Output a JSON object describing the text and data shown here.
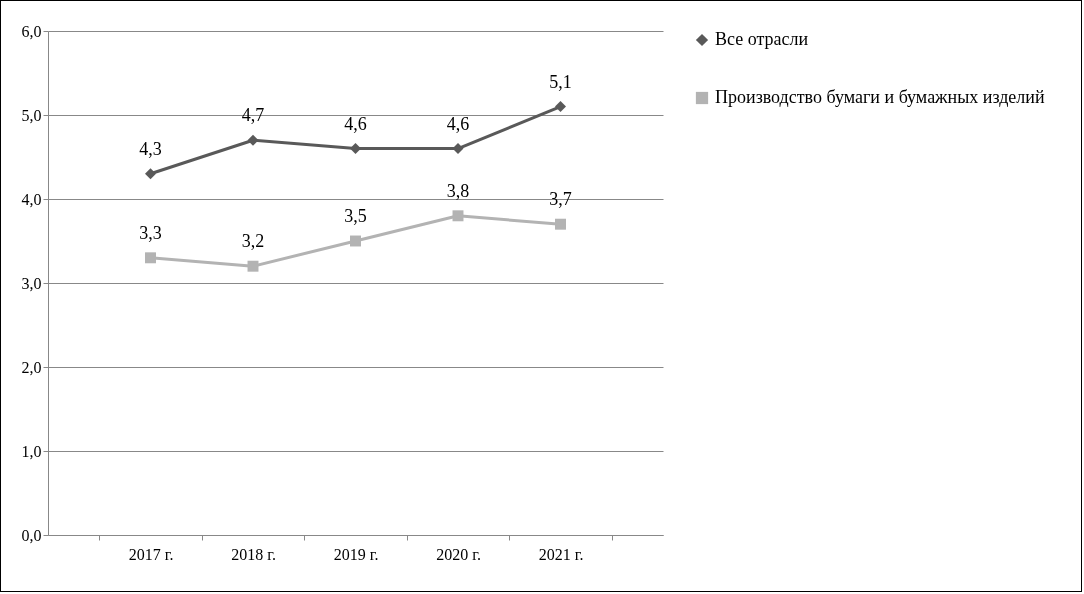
{
  "chart_data": {
    "type": "line",
    "categories": [
      "2017 г.",
      "2018 г.",
      "2019 г.",
      "2020 г.",
      "2021 г."
    ],
    "series": [
      {
        "name": "Все отрасли",
        "color": "#595959",
        "marker": "diamond",
        "values": [
          4.3,
          4.7,
          4.6,
          4.6,
          5.1
        ],
        "value_labels": [
          "4,3",
          "4,7",
          "4,6",
          "4,6",
          "5,1"
        ]
      },
      {
        "name": "Производство бумаги и бумажных изделий",
        "color": "#b3b3b3",
        "marker": "square",
        "values": [
          3.3,
          3.2,
          3.5,
          3.8,
          3.7
        ],
        "value_labels": [
          "3,3",
          "3,2",
          "3,5",
          "3,8",
          "3,7"
        ]
      }
    ],
    "ylim": [
      0,
      6
    ],
    "yticks": [
      {
        "value": 0,
        "label": "0,0"
      },
      {
        "value": 1,
        "label": "1,0"
      },
      {
        "value": 2,
        "label": "2,0"
      },
      {
        "value": 3,
        "label": "3,0"
      },
      {
        "value": 4,
        "label": "4,0"
      },
      {
        "value": 5,
        "label": "5,0"
      },
      {
        "value": 6,
        "label": "6,0"
      }
    ],
    "grid": "y",
    "legend": "right"
  }
}
